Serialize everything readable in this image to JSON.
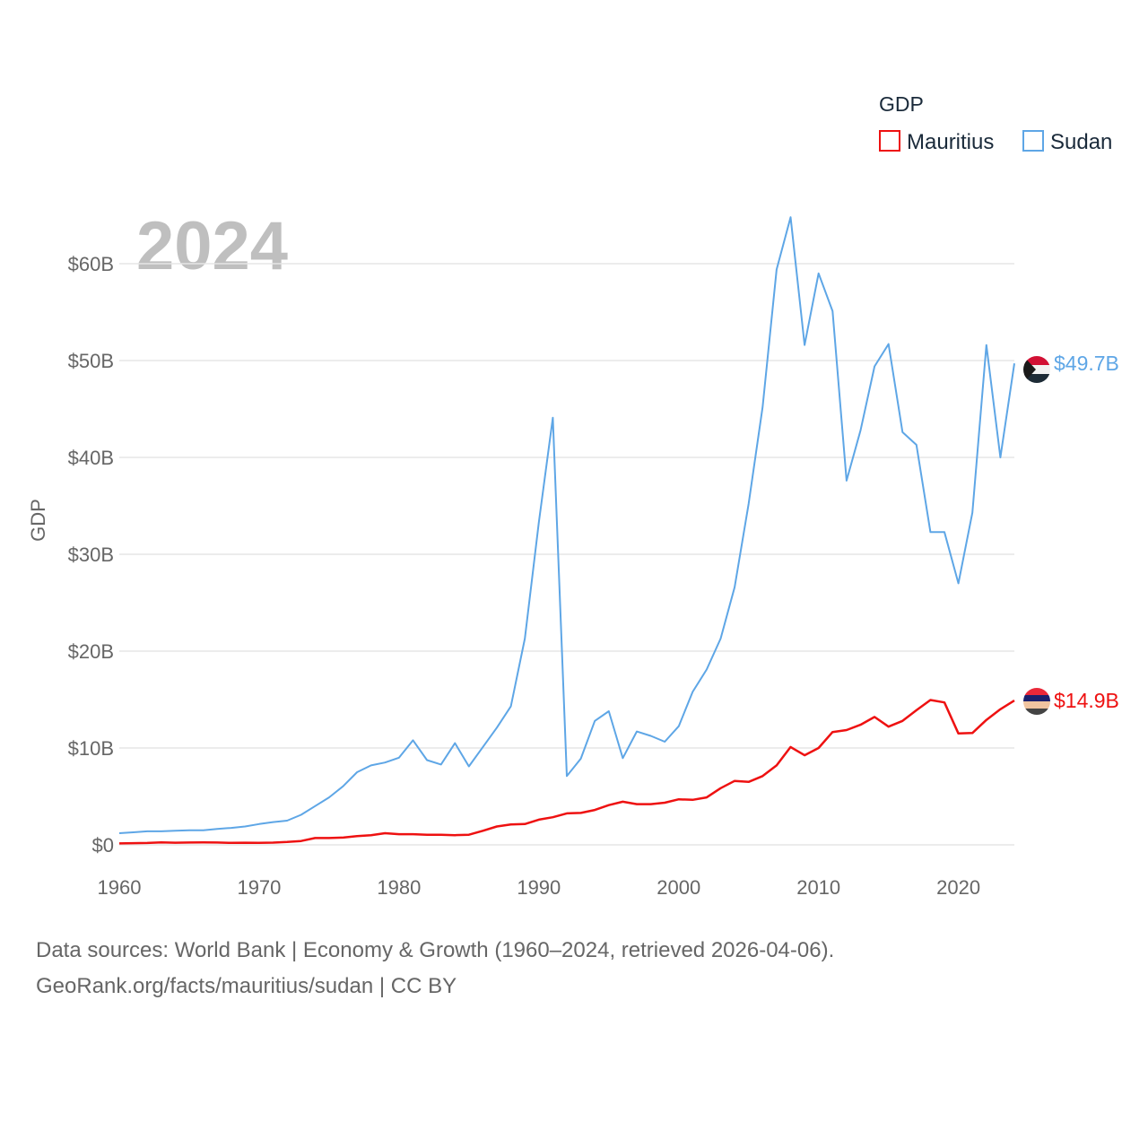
{
  "chart_data": {
    "type": "line",
    "title": "",
    "year_label": "2024",
    "ylabel": "GDP",
    "xlabel": "",
    "xlim": [
      1960,
      2024
    ],
    "ylim": [
      0,
      65
    ],
    "y_ticks": [
      0,
      10,
      20,
      30,
      40,
      50,
      60
    ],
    "y_tick_labels": [
      "$0",
      "$10B",
      "$20B",
      "$30B",
      "$40B",
      "$50B",
      "$60B"
    ],
    "x_ticks": [
      1960,
      1970,
      1980,
      1990,
      2000,
      2010,
      2020
    ],
    "x_tick_labels": [
      "1960",
      "1970",
      "1980",
      "1990",
      "2000",
      "2010",
      "2020"
    ],
    "legend": {
      "title": "GDP",
      "position": "top-right",
      "entries": [
        {
          "name": "Mauritius",
          "color": "#ee1111"
        },
        {
          "name": "Sudan",
          "color": "#5ea6e6"
        }
      ]
    },
    "x": [
      1960,
      1961,
      1962,
      1963,
      1964,
      1965,
      1966,
      1967,
      1968,
      1969,
      1970,
      1971,
      1972,
      1973,
      1974,
      1975,
      1976,
      1977,
      1978,
      1979,
      1980,
      1981,
      1982,
      1983,
      1984,
      1985,
      1986,
      1987,
      1988,
      1989,
      1990,
      1991,
      1992,
      1993,
      1994,
      1995,
      1996,
      1997,
      1998,
      1999,
      2000,
      2001,
      2002,
      2003,
      2004,
      2005,
      2006,
      2007,
      2008,
      2009,
      2010,
      2011,
      2012,
      2013,
      2014,
      2015,
      2016,
      2017,
      2018,
      2019,
      2020,
      2021,
      2022,
      2023,
      2024
    ],
    "series": [
      {
        "name": "Mauritius",
        "color": "#ee1111",
        "end_label": "$14.9B",
        "values": [
          0.15,
          0.18,
          0.19,
          0.25,
          0.22,
          0.24,
          0.25,
          0.24,
          0.2,
          0.22,
          0.2,
          0.23,
          0.3,
          0.4,
          0.7,
          0.7,
          0.75,
          0.9,
          1.0,
          1.2,
          1.1,
          1.1,
          1.05,
          1.05,
          1.0,
          1.05,
          1.45,
          1.9,
          2.1,
          2.15,
          2.6,
          2.85,
          3.25,
          3.3,
          3.6,
          4.1,
          4.45,
          4.2,
          4.2,
          4.35,
          4.7,
          4.65,
          4.9,
          5.85,
          6.6,
          6.5,
          7.1,
          8.2,
          10.1,
          9.25,
          10.0,
          11.65,
          11.85,
          12.4,
          13.2,
          12.2,
          12.8,
          13.9,
          14.95,
          14.7,
          11.5,
          11.55,
          12.9,
          14.0,
          14.9
        ]
      },
      {
        "name": "Sudan",
        "color": "#5ea6e6",
        "end_label": "$49.7B",
        "values": [
          1.2,
          1.3,
          1.4,
          1.4,
          1.45,
          1.5,
          1.5,
          1.65,
          1.75,
          1.9,
          2.15,
          2.35,
          2.5,
          3.1,
          4.0,
          4.9,
          6.05,
          7.5,
          8.2,
          8.5,
          9.0,
          10.8,
          8.75,
          8.3,
          10.5,
          8.1,
          10.1,
          12.1,
          14.3,
          21.3,
          33.3,
          44.1,
          7.1,
          8.9,
          12.8,
          13.8,
          8.95,
          11.7,
          11.25,
          10.65,
          12.25,
          15.8,
          18.1,
          21.3,
          26.6,
          35.2,
          45.2,
          59.4,
          64.8,
          51.6,
          59.0,
          55.1,
          37.6,
          42.8,
          49.4,
          51.7,
          42.6,
          41.3,
          32.3,
          32.3,
          27.0,
          34.3,
          51.6,
          40.0,
          49.7
        ]
      }
    ]
  },
  "footer": {
    "line1": "Data sources: World Bank | Economy & Growth (1960–2024, retrieved 2026-04-06).",
    "line2": "GeoRank.org/facts/mauritius/sudan | CC BY"
  }
}
